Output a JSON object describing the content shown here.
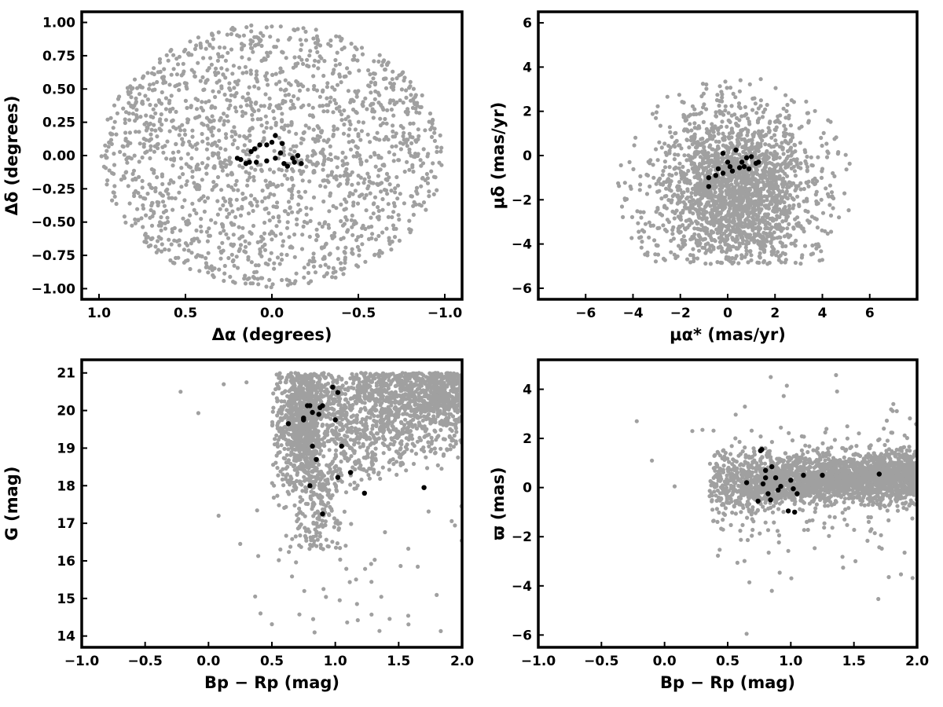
{
  "colors": {
    "field": "#a0a0a0",
    "members": "#000000",
    "frame": "#000000"
  },
  "chart_data": [
    {
      "type": "scatter",
      "panel": "position",
      "xlabel": "Δα (degrees)",
      "ylabel": "Δδ (degrees)",
      "xlim": [
        1.1,
        -1.1
      ],
      "ylim": [
        -1.08,
        1.08
      ],
      "x_reversed": true,
      "xticks": [
        1.0,
        0.5,
        0.0,
        -0.5,
        -1.0
      ],
      "xtick_labels": [
        "1.0",
        "0.5",
        "0.0",
        "−0.5",
        "−1.0"
      ],
      "yticks": [
        1.0,
        0.75,
        0.5,
        0.25,
        0.0,
        -0.25,
        -0.5,
        -0.75,
        -1.0
      ],
      "ytick_labels": [
        "1.00",
        "0.75",
        "0.50",
        "0.25",
        "0.00",
        "−0.25",
        "−0.50",
        "−0.75",
        "−1.00"
      ],
      "grid": false,
      "series": [
        {
          "role": "field",
          "color": "#a0a0a0",
          "approx_count": 1800,
          "distribution": {
            "shape": "uniform-ellipse",
            "cx": 0.0,
            "cy": 0.0,
            "rx": 0.99,
            "ry": 0.99
          }
        },
        {
          "role": "members",
          "color": "#000000",
          "points": [
            [
              0.12,
              0.03
            ],
            [
              0.1,
              0.05
            ],
            [
              0.07,
              0.08
            ],
            [
              0.03,
              0.08
            ],
            [
              0.0,
              0.1
            ],
            [
              -0.02,
              0.15
            ],
            [
              -0.06,
              0.09
            ],
            [
              -0.05,
              0.02
            ],
            [
              -0.02,
              -0.02
            ],
            [
              0.03,
              -0.04
            ],
            [
              0.09,
              -0.05
            ],
            [
              0.13,
              -0.05
            ],
            [
              0.18,
              -0.03
            ],
            [
              0.2,
              -0.02
            ],
            [
              -0.07,
              -0.06
            ],
            [
              -0.09,
              -0.08
            ],
            [
              -0.13,
              -0.05
            ],
            [
              -0.17,
              -0.06
            ],
            [
              -0.15,
              0.0
            ],
            [
              -0.12,
              -0.02
            ],
            [
              0.15,
              -0.06
            ]
          ]
        }
      ]
    },
    {
      "type": "scatter",
      "panel": "proper-motion",
      "xlabel": "μα* (mas/yr)",
      "ylabel": "μδ (mas/yr)",
      "xlim": [
        -8,
        8
      ],
      "ylim": [
        -6.5,
        6.5
      ],
      "xticks": [
        -6,
        -4,
        -2,
        0,
        2,
        4,
        6
      ],
      "xtick_labels": [
        "−6",
        "−4",
        "−2",
        "0",
        "2",
        "4",
        "6"
      ],
      "yticks": [
        -6,
        -4,
        -2,
        0,
        2,
        4,
        6
      ],
      "ytick_labels": [
        "−6",
        "−4",
        "−2",
        "0",
        "2",
        "4",
        "6"
      ],
      "grid": false,
      "series": [
        {
          "role": "field",
          "color": "#a0a0a0",
          "approx_count": 2200,
          "distribution": {
            "shape": "gaussian-clipped",
            "cx": 0.3,
            "cy": -1.6,
            "sx": 1.5,
            "sy": 1.8,
            "ymin": -4.9,
            "r_max": 5.0
          }
        },
        {
          "role": "members",
          "color": "#000000",
          "points": [
            [
              -0.8,
              -1.0
            ],
            [
              -0.8,
              -1.4
            ],
            [
              -0.5,
              -0.9
            ],
            [
              -0.4,
              -0.6
            ],
            [
              -0.2,
              -0.8
            ],
            [
              -0.2,
              0.1
            ],
            [
              0.0,
              -0.3
            ],
            [
              0.1,
              -0.5
            ],
            [
              0.2,
              -0.7
            ],
            [
              0.35,
              0.25
            ],
            [
              0.5,
              -0.55
            ],
            [
              0.6,
              -0.3
            ],
            [
              0.7,
              -0.5
            ],
            [
              0.8,
              -0.1
            ],
            [
              0.9,
              -0.6
            ],
            [
              1.0,
              -0.05
            ],
            [
              1.2,
              -0.35
            ],
            [
              1.3,
              -0.3
            ]
          ]
        }
      ]
    },
    {
      "type": "scatter",
      "panel": "colour-magnitude",
      "xlabel": "Bp − Rp (mag)",
      "ylabel": "G (mag)",
      "xlim": [
        -1.0,
        2.0
      ],
      "ylim": [
        13.7,
        21.35
      ],
      "xticks": [
        -1.0,
        -0.5,
        0.0,
        0.5,
        1.0,
        1.5,
        2.0
      ],
      "xtick_labels": [
        "−1.0",
        "−0.5",
        "0.0",
        "0.5",
        "1.0",
        "1.5",
        "2.0"
      ],
      "yticks": [
        14,
        15,
        16,
        17,
        18,
        19,
        20,
        21
      ],
      "ytick_labels": [
        "14",
        "15",
        "16",
        "17",
        "18",
        "19",
        "20",
        "21"
      ],
      "grid": false,
      "series": [
        {
          "role": "field",
          "color": "#a0a0a0",
          "approx_count": 2600,
          "distribution": {
            "shape": "cmd",
            "x_min": 0.5,
            "x_max": 2.0,
            "y_min": 16.3,
            "y_max": 21.0,
            "turnoff_x": 0.75
          }
        },
        {
          "role": "members",
          "color": "#000000",
          "points": [
            [
              0.63,
              19.65
            ],
            [
              0.75,
              19.8
            ],
            [
              0.78,
              20.13
            ],
            [
              0.8,
              20.13
            ],
            [
              0.82,
              19.95
            ],
            [
              0.87,
              19.9
            ],
            [
              0.88,
              20.08
            ],
            [
              0.9,
              20.13
            ],
            [
              0.98,
              20.62
            ],
            [
              1.02,
              20.48
            ],
            [
              0.75,
              19.75
            ],
            [
              0.82,
              19.05
            ],
            [
              0.85,
              18.7
            ],
            [
              0.8,
              18.0
            ],
            [
              0.9,
              17.25
            ],
            [
              1.0,
              19.75
            ],
            [
              1.05,
              19.05
            ],
            [
              1.02,
              18.22
            ],
            [
              1.12,
              18.35
            ],
            [
              1.23,
              17.8
            ],
            [
              1.7,
              17.95
            ]
          ]
        }
      ]
    },
    {
      "type": "scatter",
      "panel": "parallax",
      "xlabel": "Bp − Rp (mag)",
      "ylabel": "ϖ (mas)",
      "xlim": [
        -1.0,
        2.0
      ],
      "ylim": [
        -6.5,
        5.2
      ],
      "xticks": [
        -1.0,
        -0.5,
        0.0,
        0.5,
        1.0,
        1.5,
        2.0
      ],
      "xtick_labels": [
        "−1.0",
        "−0.5",
        "0.0",
        "0.5",
        "1.0",
        "1.5",
        "2.0"
      ],
      "yticks": [
        -6,
        -4,
        -2,
        0,
        2,
        4
      ],
      "ytick_labels": [
        "−6",
        "−4",
        "−2",
        "0",
        "2",
        "4"
      ],
      "grid": false,
      "series": [
        {
          "role": "field",
          "color": "#a0a0a0",
          "approx_count": 2600,
          "distribution": {
            "shape": "band",
            "x_min": 0.35,
            "x_max": 2.0,
            "center_y": 0.25,
            "sigma_y": 0.9
          }
        },
        {
          "role": "members",
          "color": "#000000",
          "points": [
            [
              0.65,
              0.2
            ],
            [
              0.74,
              -0.55
            ],
            [
              0.76,
              1.5
            ],
            [
              0.77,
              1.55
            ],
            [
              0.78,
              0.15
            ],
            [
              0.8,
              0.7
            ],
            [
              0.8,
              0.4
            ],
            [
              0.82,
              -0.25
            ],
            [
              0.84,
              -0.5
            ],
            [
              0.85,
              0.85
            ],
            [
              0.88,
              0.4
            ],
            [
              0.9,
              -0.1
            ],
            [
              0.92,
              0.05
            ],
            [
              0.98,
              -0.95
            ],
            [
              1.0,
              0.3
            ],
            [
              1.02,
              -0.05
            ],
            [
              1.03,
              -1.0
            ],
            [
              1.05,
              -0.25
            ],
            [
              1.1,
              0.5
            ],
            [
              1.25,
              0.5
            ],
            [
              1.7,
              0.55
            ]
          ]
        }
      ]
    }
  ]
}
